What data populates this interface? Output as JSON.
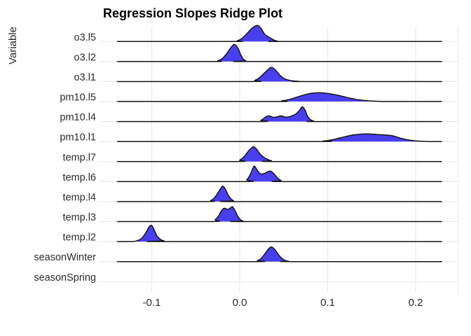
{
  "title": "Regression Slopes Ridge Plot",
  "y_axis_title": "Variable",
  "colors": {
    "ridge_fill": "#4a3fef",
    "ridge_stroke": "#141414",
    "grid": "#e8e8e8",
    "axis_text": "#2b2b2b",
    "title_text": "#000000",
    "background": "#ffffff"
  },
  "chart_data": {
    "type": "area",
    "subtype": "ridgeline",
    "title": "Regression Slopes Ridge Plot",
    "xlabel": "",
    "ylabel": "Variable",
    "grid": true,
    "legend": "none",
    "xlim": [
      -0.139,
      0.2295
    ],
    "x_ticks": [
      -0.1,
      0.0,
      0.1,
      0.2
    ],
    "x_tick_labels": [
      "-0.1",
      "0.0",
      "0.1",
      "0.2"
    ],
    "categories": [
      "o3.l5",
      "o3.l2",
      "o3.l1",
      "pm10.l5",
      "pm10.l4",
      "pm10.l1",
      "temp.l7",
      "temp.l6",
      "temp.l4",
      "temp.l3",
      "temp.l2",
      "seasonWinter",
      "seasonSpring"
    ],
    "series": [
      {
        "name": "o3.l5",
        "peak_x": 0.02,
        "density": [
          [
            -0.008,
            0
          ],
          [
            -0.003,
            1
          ],
          [
            0.002,
            4
          ],
          [
            0.008,
            11
          ],
          [
            0.014,
            19
          ],
          [
            0.02,
            23
          ],
          [
            0.024,
            19
          ],
          [
            0.028,
            11
          ],
          [
            0.032,
            7
          ],
          [
            0.035,
            5
          ],
          [
            0.039,
            2
          ],
          [
            0.043,
            0.5
          ],
          [
            0.048,
            0
          ]
        ]
      },
      {
        "name": "o3.l2",
        "peak_x": -0.006,
        "density": [
          [
            -0.03,
            0
          ],
          [
            -0.025,
            1
          ],
          [
            -0.02,
            4
          ],
          [
            -0.015,
            11
          ],
          [
            -0.01,
            20
          ],
          [
            -0.006,
            24.5
          ],
          [
            -0.002,
            19
          ],
          [
            0.001,
            10
          ],
          [
            0.004,
            3.5
          ],
          [
            0.007,
            1
          ],
          [
            0.01,
            0
          ]
        ]
      },
      {
        "name": "o3.l1",
        "peak_x": 0.036,
        "density": [
          [
            0.012,
            0
          ],
          [
            0.017,
            1.5
          ],
          [
            0.022,
            5
          ],
          [
            0.028,
            12
          ],
          [
            0.034,
            19
          ],
          [
            0.037,
            20
          ],
          [
            0.041,
            16
          ],
          [
            0.045,
            10
          ],
          [
            0.049,
            5.5
          ],
          [
            0.054,
            2.5
          ],
          [
            0.06,
            1
          ],
          [
            0.067,
            0.4
          ],
          [
            0.073,
            0
          ]
        ]
      },
      {
        "name": "pm10.l5",
        "peak_x": 0.092,
        "density": [
          [
            0.038,
            0
          ],
          [
            0.048,
            1
          ],
          [
            0.058,
            3.5
          ],
          [
            0.068,
            7.5
          ],
          [
            0.078,
            11
          ],
          [
            0.088,
            12.5
          ],
          [
            0.095,
            12.3
          ],
          [
            0.105,
            10.5
          ],
          [
            0.115,
            8
          ],
          [
            0.125,
            5
          ],
          [
            0.135,
            2.5
          ],
          [
            0.146,
            1
          ],
          [
            0.158,
            0.3
          ],
          [
            0.168,
            0
          ]
        ]
      },
      {
        "name": "pm10.l4",
        "peak_x": 0.072,
        "density": [
          [
            0.019,
            0
          ],
          [
            0.024,
            1.5
          ],
          [
            0.028,
            5
          ],
          [
            0.032,
            8
          ],
          [
            0.035,
            7.5
          ],
          [
            0.038,
            6
          ],
          [
            0.042,
            6.5
          ],
          [
            0.046,
            8
          ],
          [
            0.049,
            7.5
          ],
          [
            0.052,
            6.3
          ],
          [
            0.056,
            6.8
          ],
          [
            0.06,
            8.5
          ],
          [
            0.064,
            11
          ],
          [
            0.068,
            16
          ],
          [
            0.071,
            21
          ],
          [
            0.074,
            17
          ],
          [
            0.077,
            8
          ],
          [
            0.08,
            3
          ],
          [
            0.084,
            0.8
          ],
          [
            0.088,
            0
          ]
        ]
      },
      {
        "name": "pm10.l1",
        "peak_x": 0.143,
        "density": [
          [
            0.085,
            0
          ],
          [
            0.095,
            0.8
          ],
          [
            0.105,
            2.5
          ],
          [
            0.115,
            5.5
          ],
          [
            0.125,
            8.5
          ],
          [
            0.135,
            10.3
          ],
          [
            0.143,
            11
          ],
          [
            0.151,
            10.6
          ],
          [
            0.159,
            9.8
          ],
          [
            0.167,
            9.2
          ],
          [
            0.174,
            8.2
          ],
          [
            0.181,
            5.5
          ],
          [
            0.189,
            3
          ],
          [
            0.198,
            1.2
          ],
          [
            0.208,
            0.3
          ],
          [
            0.215,
            0
          ]
        ]
      },
      {
        "name": "temp.l7",
        "peak_x": 0.015,
        "density": [
          [
            -0.005,
            0
          ],
          [
            0.0,
            2
          ],
          [
            0.005,
            7
          ],
          [
            0.01,
            15
          ],
          [
            0.015,
            21
          ],
          [
            0.019,
            18
          ],
          [
            0.023,
            11
          ],
          [
            0.027,
            6.5
          ],
          [
            0.031,
            3.5
          ],
          [
            0.036,
            1.2
          ],
          [
            0.041,
            0
          ]
        ]
      },
      {
        "name": "temp.l6",
        "peak_x": 0.017,
        "density": [
          [
            0.004,
            0
          ],
          [
            0.008,
            2.5
          ],
          [
            0.012,
            10
          ],
          [
            0.015,
            19
          ],
          [
            0.017,
            22
          ],
          [
            0.02,
            16
          ],
          [
            0.023,
            11.5
          ],
          [
            0.027,
            11
          ],
          [
            0.031,
            13.5
          ],
          [
            0.035,
            15
          ],
          [
            0.039,
            11
          ],
          [
            0.043,
            5
          ],
          [
            0.047,
            1.5
          ],
          [
            0.051,
            0
          ]
        ]
      },
      {
        "name": "temp.l4",
        "peak_x": -0.02,
        "density": [
          [
            -0.037,
            0
          ],
          [
            -0.033,
            1.5
          ],
          [
            -0.029,
            5
          ],
          [
            -0.025,
            12
          ],
          [
            -0.021,
            20
          ],
          [
            -0.019,
            22
          ],
          [
            -0.016,
            17
          ],
          [
            -0.013,
            9
          ],
          [
            -0.01,
            4
          ],
          [
            -0.007,
            1.2
          ],
          [
            -0.004,
            0
          ]
        ]
      },
      {
        "name": "temp.l3",
        "peak_x": -0.008,
        "density": [
          [
            -0.032,
            0
          ],
          [
            -0.028,
            2.5
          ],
          [
            -0.024,
            8
          ],
          [
            -0.021,
            15
          ],
          [
            -0.018,
            19
          ],
          [
            -0.015,
            18
          ],
          [
            -0.013,
            17.5
          ],
          [
            -0.01,
            20
          ],
          [
            -0.008,
            21
          ],
          [
            -0.005,
            15
          ],
          [
            -0.002,
            7
          ],
          [
            0.001,
            2.5
          ],
          [
            0.004,
            0.6
          ],
          [
            0.007,
            0
          ]
        ]
      },
      {
        "name": "temp.l2",
        "peak_x": -0.1,
        "density": [
          [
            -0.122,
            0
          ],
          [
            -0.117,
            1.2
          ],
          [
            -0.112,
            4
          ],
          [
            -0.107,
            12
          ],
          [
            -0.103,
            21
          ],
          [
            -0.1,
            23
          ],
          [
            -0.097,
            16
          ],
          [
            -0.094,
            8
          ],
          [
            -0.09,
            3
          ],
          [
            -0.086,
            1
          ],
          [
            -0.081,
            0
          ]
        ]
      },
      {
        "name": "seasonWinter",
        "peak_x": 0.036,
        "density": [
          [
            0.016,
            0
          ],
          [
            0.02,
            1.2
          ],
          [
            0.024,
            4
          ],
          [
            0.028,
            10
          ],
          [
            0.032,
            17
          ],
          [
            0.036,
            21
          ],
          [
            0.04,
            17
          ],
          [
            0.044,
            10
          ],
          [
            0.048,
            4.5
          ],
          [
            0.052,
            1.5
          ],
          [
            0.056,
            0.4
          ],
          [
            0.06,
            0
          ]
        ]
      },
      {
        "name": "seasonSpring",
        "peak_x": null,
        "density": []
      }
    ]
  }
}
